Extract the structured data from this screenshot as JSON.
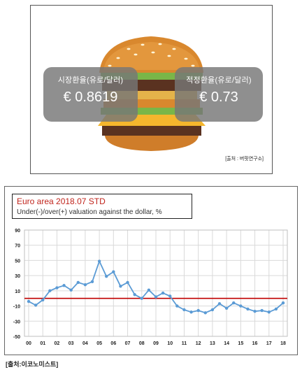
{
  "top_panel": {
    "market_rate_label": "시장환율(유로/달러)",
    "market_rate_value": "€ 0.8619",
    "fair_rate_label": "적정환율(유로/달러)",
    "fair_rate_value": "€ 0.73",
    "source": "[출처 : 버핏연구소]"
  },
  "chart_data": {
    "type": "line",
    "title": "Euro area 2018.07 STD",
    "subtitle": "Under(-)/over(+) valuation against the dollar, %",
    "xlabel": "",
    "ylabel": "",
    "ylim": [
      -50,
      90
    ],
    "yticks": [
      90,
      70,
      50,
      30,
      10,
      -10,
      -30,
      -50
    ],
    "ytick_labels": [
      "90",
      "70",
      "50",
      "30",
      "10",
      "-10",
      "-30",
      "-50"
    ],
    "xticks": [
      0,
      1,
      2,
      3,
      4,
      5,
      6,
      7,
      8,
      9,
      10,
      11,
      12,
      13,
      14,
      15,
      16,
      17,
      18
    ],
    "xtick_labels": [
      "00",
      "01",
      "02",
      "03",
      "04",
      "05",
      "06",
      "07",
      "08",
      "09",
      "10",
      "11",
      "12",
      "13",
      "14",
      "15",
      "16",
      "17",
      "18"
    ],
    "reference_line": 0,
    "grid": true,
    "colors": {
      "line": "#5b9bd5",
      "reference": "#c00000",
      "grid": "#d9d9d9"
    },
    "series": [
      {
        "x": [
          0,
          0.5,
          1,
          1.5,
          2,
          2.5,
          3,
          3.5,
          4,
          4.5,
          5,
          5.5,
          6,
          6.5,
          7,
          7.5,
          8,
          8.5,
          9,
          9.5,
          10,
          10.5,
          11,
          11.5,
          12,
          12.5,
          13,
          13.5,
          14,
          14.5,
          15,
          15.5,
          16,
          16.5,
          17,
          17.5,
          18
        ],
        "values": [
          -4,
          -9,
          -2,
          10,
          14,
          17,
          11,
          21,
          18,
          22,
          49,
          29,
          35,
          16,
          21,
          5,
          0,
          11,
          2,
          7,
          3,
          -10,
          -15,
          -18,
          -16,
          -19,
          -15,
          -7,
          -13,
          -6,
          -10,
          -14,
          -17,
          -16,
          -18,
          -14,
          -6
        ]
      }
    ]
  },
  "source_bottom": "[출처:이코노미스트]"
}
